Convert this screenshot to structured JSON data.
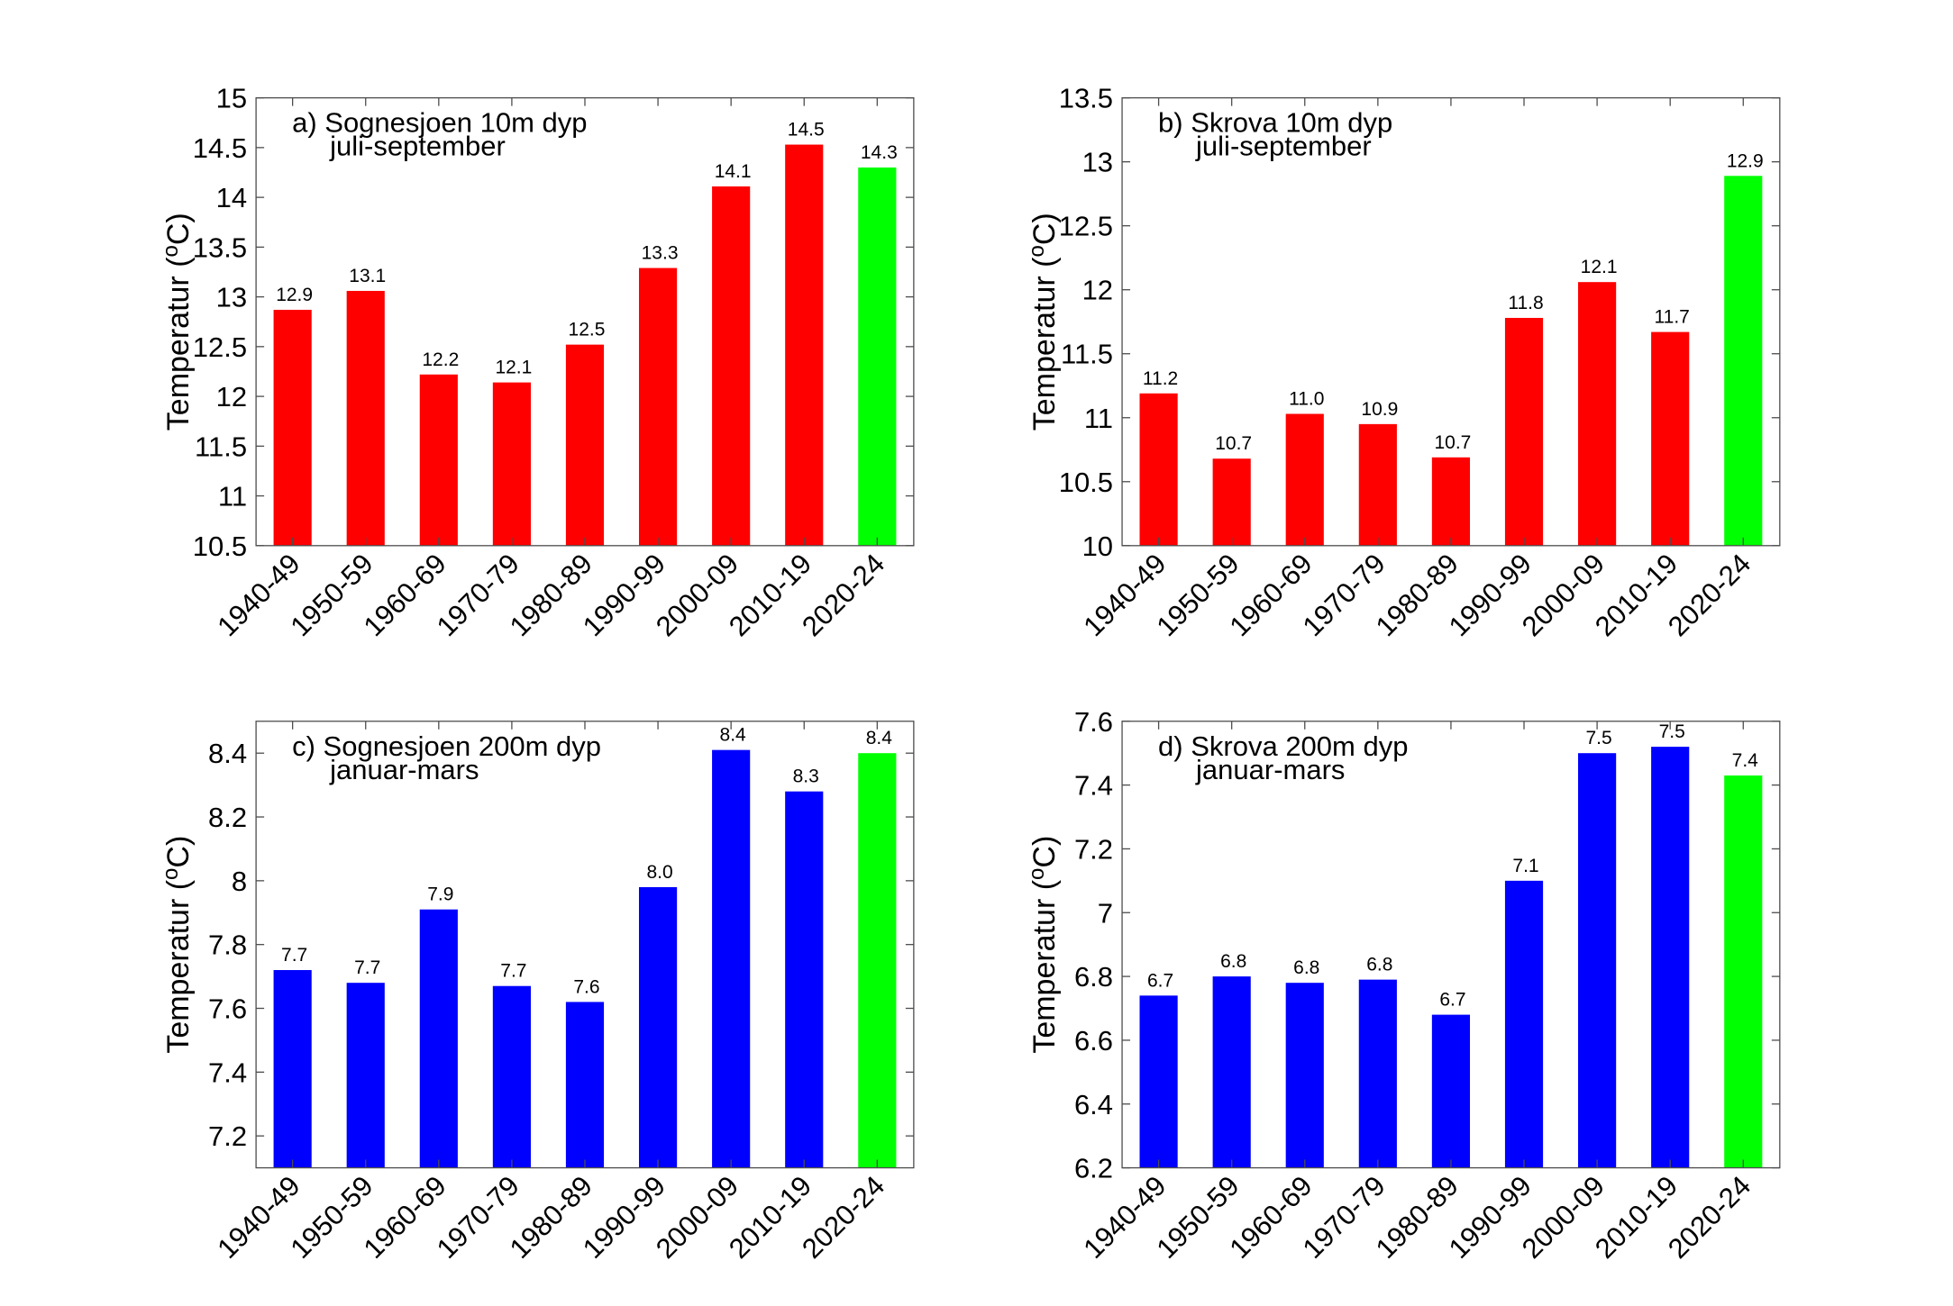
{
  "chart_data": [
    {
      "type": "bar",
      "title": "a) Sognesjoen 10m dyp",
      "subtitle": "juli-september",
      "ylabel": "Temperatur (",
      "ylabel_sup": "o",
      "ylabel_end": "C)",
      "categories": [
        "1940-49",
        "1950-59",
        "1960-69",
        "1970-79",
        "1980-89",
        "1990-99",
        "2000-09",
        "2010-19",
        "2020-24"
      ],
      "values": [
        12.87,
        13.06,
        12.22,
        12.14,
        12.52,
        13.29,
        14.11,
        14.53,
        14.3
      ],
      "data_labels": [
        "12.9",
        "13.1",
        "12.2",
        "12.1",
        "12.5",
        "13.3",
        "14.1",
        "14.5",
        "14.3"
      ],
      "colors": [
        "#ff0000",
        "#ff0000",
        "#ff0000",
        "#ff0000",
        "#ff0000",
        "#ff0000",
        "#ff0000",
        "#ff0000",
        "#00ff00"
      ],
      "ylim": [
        10.5,
        15
      ],
      "yticks": [
        "10.5",
        "11",
        "11.5",
        "12",
        "12.5",
        "13",
        "13.5",
        "14",
        "14.5",
        "15"
      ]
    },
    {
      "type": "bar",
      "title": "b) Skrova 10m dyp",
      "subtitle": "juli-september",
      "ylabel": "Temperatur (",
      "ylabel_sup": "o",
      "ylabel_end": "C)",
      "categories": [
        "1940-49",
        "1950-59",
        "1960-69",
        "1970-79",
        "1980-89",
        "1990-99",
        "2000-09",
        "2010-19",
        "2020-24"
      ],
      "values": [
        11.19,
        10.68,
        11.03,
        10.95,
        10.69,
        11.78,
        12.06,
        11.67,
        12.89
      ],
      "data_labels": [
        "11.2",
        "10.7",
        "11.0",
        "10.9",
        "10.7",
        "11.8",
        "12.1",
        "11.7",
        "12.9"
      ],
      "colors": [
        "#ff0000",
        "#ff0000",
        "#ff0000",
        "#ff0000",
        "#ff0000",
        "#ff0000",
        "#ff0000",
        "#ff0000",
        "#00ff00"
      ],
      "ylim": [
        10,
        13.5
      ],
      "yticks": [
        "10",
        "10.5",
        "11",
        "11.5",
        "12",
        "12.5",
        "13",
        "13.5"
      ]
    },
    {
      "type": "bar",
      "title": "c) Sognesjoen 200m dyp",
      "subtitle": "januar-mars",
      "ylabel": "Temperatur (",
      "ylabel_sup": "o",
      "ylabel_end": "C)",
      "categories": [
        "1940-49",
        "1950-59",
        "1960-69",
        "1970-79",
        "1980-89",
        "1990-99",
        "2000-09",
        "2010-19",
        "2020-24"
      ],
      "values": [
        7.72,
        7.68,
        7.91,
        7.67,
        7.62,
        7.98,
        8.41,
        8.28,
        8.4
      ],
      "data_labels": [
        "7.7",
        "7.7",
        "7.9",
        "7.7",
        "7.6",
        "8.0",
        "8.4",
        "8.3",
        "8.4"
      ],
      "colors": [
        "#0000ff",
        "#0000ff",
        "#0000ff",
        "#0000ff",
        "#0000ff",
        "#0000ff",
        "#0000ff",
        "#0000ff",
        "#00ff00"
      ],
      "ylim": [
        7.1,
        8.5
      ],
      "yticks": [
        "7.2",
        "7.4",
        "7.6",
        "7.8",
        "8",
        "8.2",
        "8.4"
      ]
    },
    {
      "type": "bar",
      "title": "d) Skrova 200m dyp",
      "subtitle": "januar-mars",
      "ylabel": "Temperatur (",
      "ylabel_sup": "o",
      "ylabel_end": "C)",
      "categories": [
        "1940-49",
        "1950-59",
        "1960-69",
        "1970-79",
        "1980-89",
        "1990-99",
        "2000-09",
        "2010-19",
        "2020-24"
      ],
      "values": [
        6.74,
        6.8,
        6.78,
        6.79,
        6.68,
        7.1,
        7.5,
        7.52,
        7.43
      ],
      "data_labels": [
        "6.7",
        "6.8",
        "6.8",
        "6.8",
        "6.7",
        "7.1",
        "7.5",
        "7.5",
        "7.4"
      ],
      "colors": [
        "#0000ff",
        "#0000ff",
        "#0000ff",
        "#0000ff",
        "#0000ff",
        "#0000ff",
        "#0000ff",
        "#0000ff",
        "#00ff00"
      ],
      "ylim": [
        6.2,
        7.6
      ],
      "yticks": [
        "6.2",
        "6.4",
        "6.6",
        "6.8",
        "7",
        "7.2",
        "7.4",
        "7.6"
      ]
    }
  ]
}
